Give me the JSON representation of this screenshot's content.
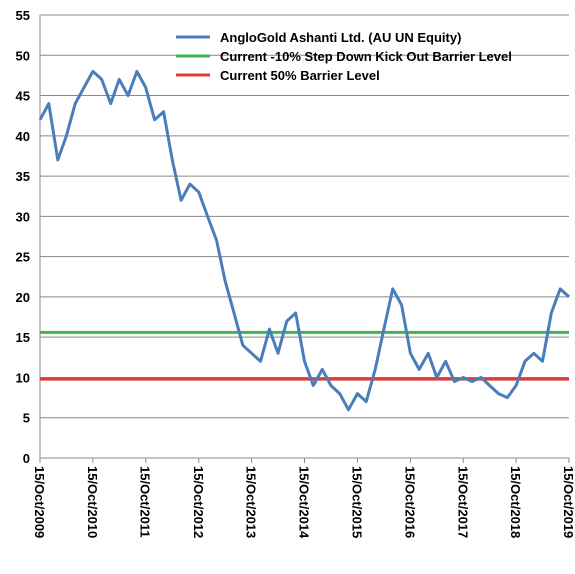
{
  "chart_data": {
    "type": "line",
    "x": [
      "2009-10-15",
      "2009-12-15",
      "2010-02-15",
      "2010-04-15",
      "2010-06-15",
      "2010-08-15",
      "2010-10-15",
      "2010-12-15",
      "2011-02-15",
      "2011-04-15",
      "2011-06-15",
      "2011-08-15",
      "2011-10-15",
      "2011-12-15",
      "2012-02-15",
      "2012-04-15",
      "2012-06-15",
      "2012-08-15",
      "2012-10-15",
      "2012-12-15",
      "2013-02-15",
      "2013-04-15",
      "2013-06-15",
      "2013-08-15",
      "2013-10-15",
      "2013-12-15",
      "2014-02-15",
      "2014-04-15",
      "2014-06-15",
      "2014-08-15",
      "2014-10-15",
      "2014-12-15",
      "2015-02-15",
      "2015-04-15",
      "2015-06-15",
      "2015-08-15",
      "2015-10-15",
      "2015-12-15",
      "2016-02-15",
      "2016-04-15",
      "2016-06-15",
      "2016-08-15",
      "2016-10-15",
      "2016-12-15",
      "2017-02-15",
      "2017-04-15",
      "2017-06-15",
      "2017-08-15",
      "2017-10-15",
      "2017-12-15",
      "2018-02-15",
      "2018-04-15",
      "2018-06-15",
      "2018-08-15",
      "2018-10-15",
      "2018-12-15",
      "2019-02-15",
      "2019-04-15",
      "2019-06-15",
      "2019-08-15",
      "2019-10-15"
    ],
    "series": [
      {
        "name": "AngloGold Ashanti Ltd. (AU UN Equity)",
        "color": "#4a7ebb",
        "values": [
          42,
          44,
          37,
          40,
          44,
          46,
          48,
          47,
          44,
          47,
          45,
          48,
          46,
          42,
          43,
          37,
          32,
          34,
          33,
          30,
          27,
          22,
          18,
          14,
          13,
          12,
          16,
          13,
          17,
          18,
          12,
          9,
          11,
          9,
          8,
          6,
          8,
          7,
          11,
          16,
          21,
          19,
          13,
          11,
          13,
          10,
          12,
          9.5,
          10,
          9.5,
          10,
          9,
          8,
          7.5,
          9,
          12,
          13,
          12,
          18,
          21,
          20
        ]
      }
    ],
    "reference_lines": [
      {
        "name": "Current -10% Step Down Kick Out Barrier Level",
        "color": "#3cb54a",
        "value": 15.6
      },
      {
        "name": "Current 50% Barrier Level",
        "color": "#e03a3a",
        "value": 9.8
      }
    ],
    "ylim": [
      0,
      55
    ],
    "yticks": [
      0,
      5,
      10,
      15,
      20,
      25,
      30,
      35,
      40,
      45,
      50,
      55
    ],
    "xlim": [
      "2009-10-15",
      "2019-10-15"
    ],
    "xticks": [
      {
        "value": "2009-10-15",
        "label": "15/Oct/2009"
      },
      {
        "value": "2010-10-15",
        "label": "15/Oct/2010"
      },
      {
        "value": "2011-10-15",
        "label": "15/Oct/2011"
      },
      {
        "value": "2012-10-15",
        "label": "15/Oct/2012"
      },
      {
        "value": "2013-10-15",
        "label": "15/Oct/2013"
      },
      {
        "value": "2014-10-15",
        "label": "15/Oct/2014"
      },
      {
        "value": "2015-10-15",
        "label": "15/Oct/2015"
      },
      {
        "value": "2016-10-15",
        "label": "15/Oct/2016"
      },
      {
        "value": "2017-10-15",
        "label": "15/Oct/2017"
      },
      {
        "value": "2018-10-15",
        "label": "15/Oct/2018"
      },
      {
        "value": "2019-10-15",
        "label": "15/Oct/2019"
      }
    ],
    "grid": true
  }
}
